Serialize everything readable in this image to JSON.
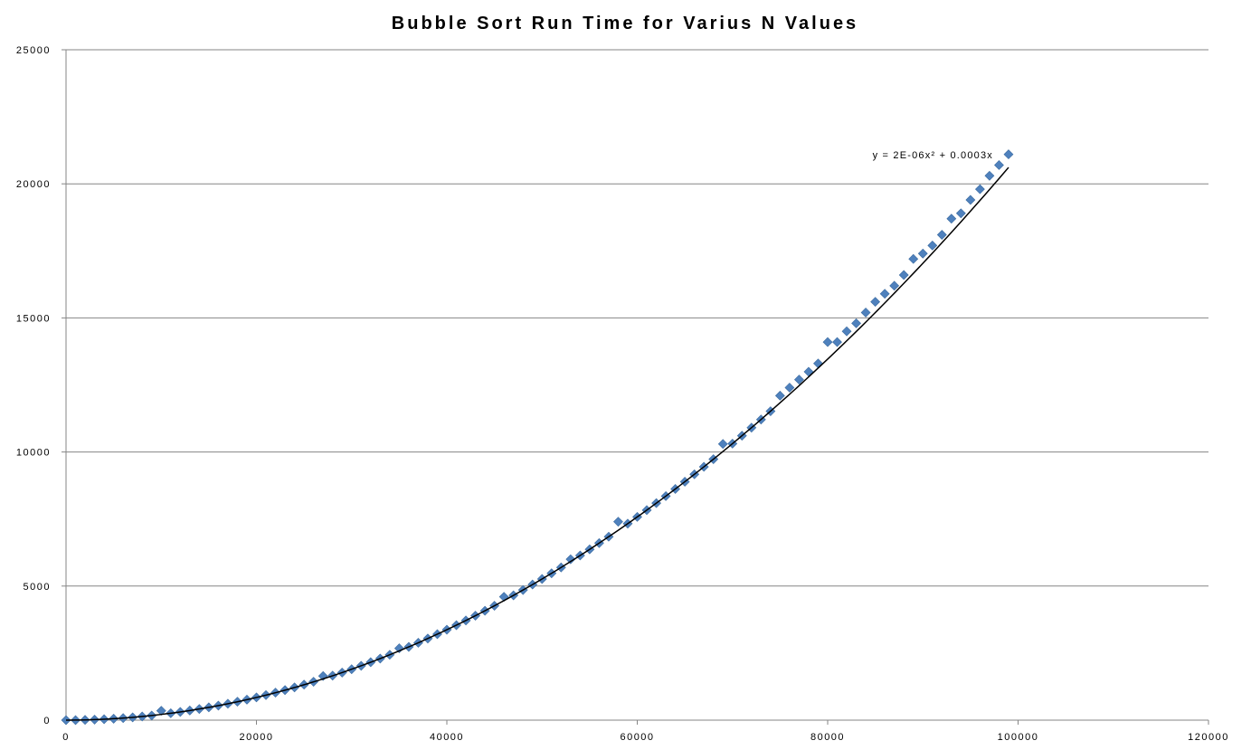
{
  "chart_data": {
    "type": "scatter",
    "title": "Bubble Sort Run Time for Varius N Values",
    "xlabel": "",
    "ylabel": "",
    "xlim": [
      0,
      120000
    ],
    "ylim": [
      0,
      25000
    ],
    "xticks": [
      0,
      20000,
      40000,
      60000,
      80000,
      100000,
      120000
    ],
    "yticks": [
      0,
      5000,
      10000,
      15000,
      20000,
      25000
    ],
    "grid": "horizontal",
    "legend": "none",
    "marker": "diamond",
    "marker_color": "#4F81BD",
    "trendline": {
      "type": "polynomial",
      "order": 2,
      "equation": "y = 2E-06x² + 0.0003x",
      "a": 2.1e-06,
      "b": 0.0003,
      "color": "#000000"
    },
    "series": [
      {
        "x": [
          0,
          1000,
          2000,
          3000,
          4000,
          5000,
          6000,
          7000,
          8000,
          9000,
          10000,
          11000,
          12000,
          13000,
          14000,
          15000,
          16000,
          17000,
          18000,
          19000,
          20000,
          21000,
          22000,
          23000,
          24000,
          25000,
          26000,
          27000,
          28000,
          29000,
          30000,
          31000,
          32000,
          33000,
          34000,
          35000,
          36000,
          37000,
          38000,
          39000,
          40000,
          41000,
          42000,
          43000,
          44000,
          45000,
          46000,
          47000,
          48000,
          49000,
          50000,
          51000,
          52000,
          53000,
          54000,
          55000,
          56000,
          57000,
          58000,
          59000,
          60000,
          61000,
          62000,
          63000,
          64000,
          65000,
          66000,
          67000,
          68000,
          69000,
          70000,
          71000,
          72000,
          73000,
          74000,
          75000,
          76000,
          77000,
          78000,
          79000,
          80000,
          81000,
          82000,
          83000,
          84000,
          85000,
          86000,
          87000,
          88000,
          89000,
          90000,
          91000,
          92000,
          93000,
          94000,
          95000,
          96000,
          97000,
          98000,
          99000
        ],
        "y": [
          0,
          2,
          9,
          20,
          35,
          54,
          77,
          104,
          136,
          172,
          350,
          257,
          306,
          359,
          416,
          477,
          543,
          613,
          687,
          765,
          848,
          935,
          1026,
          1121,
          1221,
          1325,
          1433,
          1645,
          1660,
          1774,
          1899,
          2027,
          2160,
          2297,
          2438,
          2680,
          2732,
          2886,
          3044,
          3206,
          3372,
          3542,
          3717,
          3895,
          4078,
          4266,
          4600,
          4654,
          4852,
          5057,
          5265,
          5477,
          5694,
          6000,
          6140,
          6369,
          6603,
          6840,
          7400,
          7328,
          7578,
          7833,
          8093,
          8354,
          8621,
          8892,
          9168,
          9448,
          9732,
          10300,
          10311,
          10607,
          10907,
          11211,
          11520,
          12100,
          12400,
          12700,
          12992,
          13300,
          14100,
          14100,
          14500,
          14800,
          15200,
          15600,
          15900,
          16200,
          16600,
          17200,
          17400,
          17700,
          18100,
          18700,
          18900,
          19400,
          19800,
          20300,
          20700,
          21100
        ]
      }
    ]
  }
}
